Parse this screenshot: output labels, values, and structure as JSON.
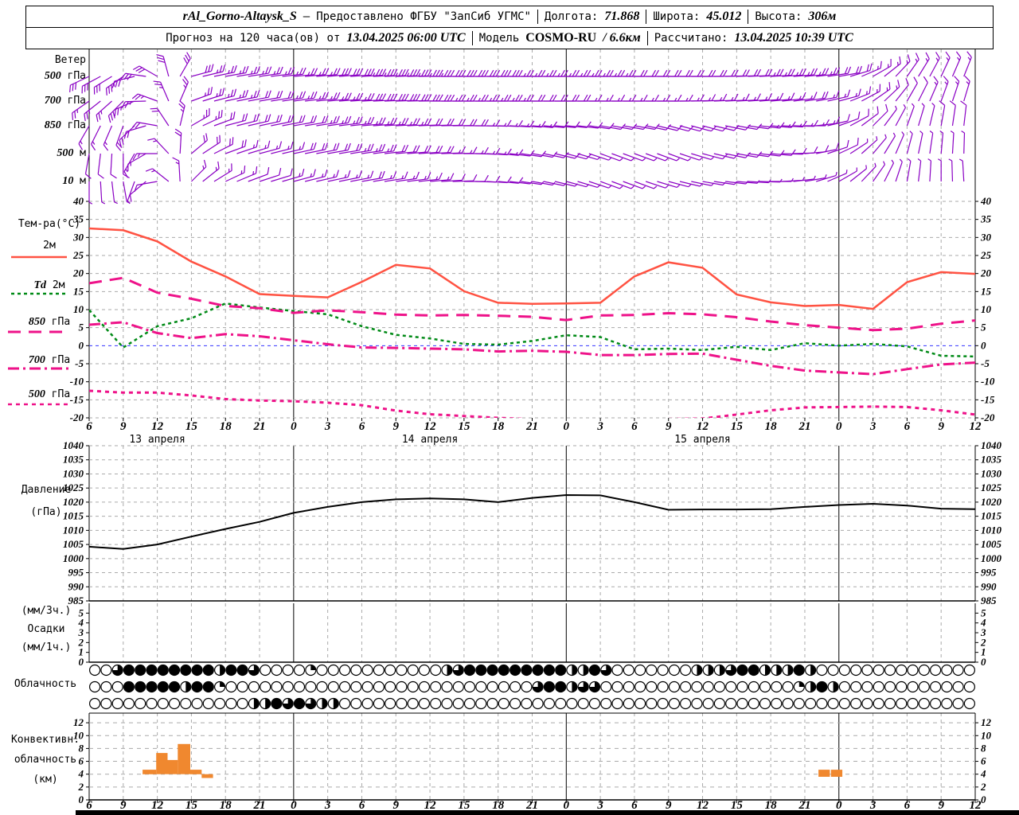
{
  "header": {
    "station": "rAl_Gorno-Altaysk_S",
    "dash": "—",
    "provided_by": "Предоставлено ФГБУ \"ЗапСиб УГМС\"",
    "lon_label": "Долгота:",
    "lon": "71.868",
    "lat_label": "Широта:",
    "lat": "45.012",
    "alt_label": "Высота:",
    "alt": "306м",
    "forecast_label": "Прогноз на 120 часа(ов) от",
    "forecast_time": "13.04.2025 06:00 UTC",
    "model_label": "Модель",
    "model": "COSMO-RU",
    "model_res": "/ 6.6км",
    "calc_label": "Рассчитано:",
    "calc_time": "13.04.2025 10:39 UTC"
  },
  "panels": {
    "wind": {
      "title": "Ветер",
      "rows": [
        {
          "num": "500",
          "unit": "гПа"
        },
        {
          "num": "700",
          "unit": "гПа"
        },
        {
          "num": "850",
          "unit": "гПа"
        },
        {
          "num": "500",
          "unit": "м"
        },
        {
          "num": "10",
          "unit": "м"
        }
      ]
    },
    "temperature": {
      "title": "Тем-ра(°C)",
      "legend": [
        {
          "em": "",
          "label": "2м"
        },
        {
          "em": "Td",
          "label": "2м"
        },
        {
          "em": "850",
          "label": "гПа"
        },
        {
          "em": "700",
          "label": "гПа"
        },
        {
          "em": "500",
          "label": "гПа"
        }
      ]
    },
    "pressure": {
      "label1": "Давление",
      "label2": "(гПа)"
    },
    "precip": {
      "label1": "(мм/3ч.)",
      "label2": "Осадки",
      "label3": "(мм/1ч.)"
    },
    "cloud": {
      "label": "Облачность"
    },
    "convective": {
      "label1": "Конвективн.",
      "label2": "облачность",
      "label3": "(км)"
    }
  },
  "colors": {
    "t2m": "#ff5242",
    "td2m": "#008a16",
    "isobaric": "#ee1289",
    "wind": "#8a00c4",
    "pressure": "#000000",
    "convective": "#f0882f",
    "grid": "#aaaaaa",
    "zero_line": "#3333ff"
  },
  "axis": {
    "x": {
      "start_hour": 6,
      "end_hour": 84,
      "step": 3,
      "day_labels": [
        {
          "text": "13 апреля",
          "hour": 12
        },
        {
          "text": "14 апреля",
          "hour": 36
        },
        {
          "text": "15 апреля",
          "hour": 60
        }
      ]
    }
  },
  "chart_data": [
    {
      "type": "wind-barbs",
      "title": "Ветер",
      "start_hour": 6,
      "step_hours": 3,
      "levels": [
        {
          "name": "500 гПа",
          "dir": [
            205,
            215,
            150,
            15,
            10,
            8,
            5,
            5,
            3,
            2,
            0,
            0,
            0,
            0,
            0,
            0,
            0,
            0,
            0,
            2,
            3,
            5,
            10,
            30,
            55,
            65,
            70
          ],
          "spd_kt": [
            30,
            35,
            30,
            30,
            28,
            25,
            25,
            30,
            35,
            35,
            35,
            30,
            30,
            28,
            25,
            25,
            22,
            20,
            20,
            22,
            25,
            25,
            22,
            18,
            15,
            18,
            20
          ]
        },
        {
          "name": "700 гПа",
          "dir": [
            215,
            225,
            160,
            20,
            12,
            10,
            8,
            5,
            3,
            2,
            0,
            0,
            0,
            0,
            0,
            0,
            0,
            0,
            2,
            3,
            5,
            8,
            15,
            35,
            60,
            70,
            75
          ],
          "spd_kt": [
            25,
            30,
            28,
            28,
            25,
            22,
            25,
            28,
            30,
            32,
            30,
            28,
            25,
            22,
            20,
            18,
            18,
            16,
            15,
            15,
            18,
            20,
            18,
            15,
            12,
            15,
            18
          ]
        },
        {
          "name": "850 гПа",
          "dir": [
            240,
            250,
            170,
            30,
            15,
            12,
            10,
            8,
            5,
            3,
            2,
            0,
            -2,
            -5,
            -5,
            -10,
            -10,
            -15,
            -15,
            -10,
            -5,
            0,
            20,
            45,
            70,
            80,
            85
          ],
          "spd_kt": [
            15,
            20,
            22,
            25,
            22,
            20,
            22,
            25,
            28,
            25,
            22,
            20,
            18,
            15,
            12,
            10,
            10,
            10,
            12,
            12,
            15,
            15,
            12,
            10,
            8,
            10,
            12
          ]
        },
        {
          "name": "500 м",
          "dir": [
            260,
            270,
            180,
            40,
            20,
            15,
            12,
            10,
            8,
            5,
            3,
            0,
            -5,
            -10,
            -15,
            -20,
            -20,
            -20,
            -15,
            -10,
            -5,
            5,
            25,
            50,
            75,
            85,
            90
          ],
          "spd_kt": [
            10,
            12,
            18,
            22,
            20,
            18,
            20,
            22,
            25,
            22,
            20,
            18,
            15,
            12,
            10,
            8,
            8,
            8,
            10,
            10,
            12,
            12,
            10,
            8,
            6,
            8,
            10
          ]
        },
        {
          "name": "10 м",
          "dir": [
            270,
            280,
            190,
            45,
            25,
            18,
            15,
            12,
            10,
            8,
            5,
            0,
            -5,
            -10,
            -15,
            -20,
            -20,
            -15,
            -10,
            -5,
            0,
            10,
            30,
            55,
            80,
            90,
            95
          ],
          "spd_kt": [
            5,
            8,
            12,
            18,
            15,
            12,
            15,
            18,
            20,
            18,
            15,
            12,
            10,
            8,
            6,
            5,
            5,
            5,
            6,
            8,
            8,
            8,
            6,
            5,
            4,
            5,
            6
          ]
        }
      ]
    },
    {
      "type": "line",
      "title": "Тем-ра(°C)",
      "ylabel": "°C",
      "ylim": [
        -20,
        40
      ],
      "ytick": 5,
      "start_hour": 6,
      "step_hours": 3,
      "series": [
        {
          "name": "2м",
          "style": "solid",
          "color": "#ff5242",
          "values": [
            32.5,
            32.0,
            28.9,
            23.3,
            19.2,
            14.3,
            13.8,
            13.4,
            17.7,
            22.4,
            21.4,
            15.1,
            11.9,
            11.6,
            11.7,
            11.9,
            19.2,
            23.1,
            21.6,
            14.2,
            12.0,
            11.0,
            11.3,
            10.2,
            17.6,
            20.4,
            19.9
          ]
        },
        {
          "name": "Td 2м",
          "style": "dashed",
          "color": "#008a16",
          "values": [
            9.9,
            -0.5,
            5.4,
            7.6,
            11.7,
            10.6,
            9.6,
            8.7,
            5.4,
            3.0,
            2.0,
            0.5,
            0.3,
            1.3,
            2.9,
            2.4,
            -1.0,
            -0.8,
            -1.2,
            -0.3,
            -1.2,
            0.7,
            0.0,
            0.5,
            -0.2,
            -2.8,
            -3.0
          ]
        },
        {
          "name": "850 гПа",
          "style": "long-dash",
          "color": "#ee1289",
          "values": [
            17.3,
            18.8,
            14.7,
            13.0,
            11.0,
            10.4,
            9.1,
            9.8,
            9.3,
            8.6,
            8.4,
            8.5,
            8.3,
            8.0,
            7.1,
            8.4,
            8.5,
            9.0,
            8.7,
            7.9,
            6.7,
            5.7,
            5.0,
            4.3,
            4.7,
            6.1,
            7.0
          ]
        },
        {
          "name": "700 гПа",
          "style": "dash-dot",
          "color": "#ee1289",
          "values": [
            5.8,
            6.5,
            3.5,
            2.1,
            3.2,
            2.6,
            1.5,
            0.4,
            -0.5,
            -0.6,
            -0.8,
            -1.0,
            -1.6,
            -1.4,
            -1.7,
            -2.6,
            -2.6,
            -2.3,
            -2.2,
            -3.9,
            -5.6,
            -6.9,
            -7.4,
            -7.9,
            -6.5,
            -5.2,
            -4.7
          ]
        },
        {
          "name": "500 гПа",
          "style": "short-dash",
          "color": "#ee1289",
          "values": [
            -12.5,
            -13.0,
            -13.0,
            -13.8,
            -14.8,
            -15.2,
            -15.4,
            -15.8,
            -16.5,
            -18.0,
            -19.0,
            -19.5,
            -20.0,
            -20.4,
            -21.0,
            -21.0,
            -20.8,
            -20.3,
            -20.2,
            -19.1,
            -17.9,
            -17.1,
            -17.0,
            -16.9,
            -17.0,
            -17.9,
            -19.1
          ]
        }
      ]
    },
    {
      "type": "line",
      "title": "Давление (гПа)",
      "ylim": [
        985,
        1040
      ],
      "ytick": 5,
      "start_hour": 6,
      "step_hours": 3,
      "series": [
        {
          "name": "Давление",
          "style": "solid",
          "color": "#000000",
          "values": [
            1004.2,
            1003.4,
            1005.0,
            1007.8,
            1010.5,
            1013.0,
            1016.2,
            1018.3,
            1020.0,
            1021.0,
            1021.3,
            1021.0,
            1020.0,
            1021.5,
            1022.5,
            1022.4,
            1020.0,
            1017.3,
            1017.4,
            1017.4,
            1017.5,
            1018.3,
            1019.0,
            1019.4,
            1018.8,
            1017.7,
            1017.5
          ]
        }
      ]
    },
    {
      "type": "bar",
      "title": "Осадки (мм/3ч., мм/1ч.)",
      "ylim": [
        0,
        6
      ],
      "ytick": 1,
      "start_hour": 6,
      "step_hours": 3,
      "values_mm_3h": [
        0,
        0,
        0,
        0,
        0,
        0,
        0,
        0,
        0,
        0,
        0,
        0,
        0,
        0,
        0,
        0,
        0,
        0,
        0,
        0,
        0,
        0,
        0,
        0,
        0,
        0,
        0
      ],
      "values_mm_1h": [
        0,
        0,
        0,
        0,
        0,
        0,
        0,
        0,
        0,
        0,
        0,
        0,
        0,
        0,
        0,
        0,
        0,
        0,
        0,
        0,
        0,
        0,
        0,
        0,
        0,
        0,
        0
      ]
    },
    {
      "type": "cloud-cover",
      "title": "Облачность",
      "start_hour": 6,
      "step_hours": 1,
      "rows_order": "top-to-bottom",
      "rows": [
        [
          0,
          0,
          6,
          8,
          8,
          8,
          8,
          8,
          8,
          8,
          8,
          4,
          8,
          8,
          6,
          0,
          0,
          0,
          0,
          2,
          0,
          0,
          0,
          0,
          0,
          0,
          0,
          0,
          0,
          0,
          0,
          4,
          6,
          8,
          8,
          8,
          8,
          8,
          8,
          8,
          8,
          8,
          4,
          4,
          8,
          6,
          0,
          0,
          0,
          0,
          0,
          0,
          0,
          4,
          4,
          4,
          6,
          8,
          8,
          4,
          4,
          4,
          8,
          4,
          0,
          0,
          0,
          0,
          0,
          0,
          0,
          0,
          0,
          0,
          0,
          0,
          0,
          0
        ],
        [
          0,
          0,
          0,
          8,
          8,
          8,
          8,
          8,
          4,
          8,
          8,
          2,
          0,
          0,
          0,
          0,
          0,
          0,
          0,
          0,
          0,
          0,
          0,
          0,
          0,
          0,
          0,
          0,
          0,
          0,
          0,
          0,
          0,
          0,
          0,
          0,
          0,
          0,
          0,
          6,
          8,
          8,
          4,
          6,
          6,
          0,
          0,
          0,
          0,
          0,
          0,
          0,
          0,
          0,
          0,
          0,
          0,
          0,
          0,
          0,
          0,
          0,
          2,
          4,
          8,
          4,
          0,
          0,
          0,
          0,
          0,
          0,
          0,
          0,
          0,
          0,
          0,
          0
        ],
        [
          0,
          0,
          0,
          0,
          0,
          0,
          0,
          0,
          0,
          0,
          0,
          0,
          0,
          0,
          4,
          4,
          8,
          6,
          8,
          6,
          4,
          4,
          0,
          0,
          0,
          0,
          0,
          0,
          0,
          0,
          0,
          0,
          0,
          0,
          0,
          0,
          0,
          0,
          0,
          0,
          0,
          0,
          0,
          0,
          0,
          0,
          0,
          0,
          0,
          0,
          0,
          0,
          0,
          0,
          0,
          0,
          0,
          0,
          0,
          0,
          0,
          0,
          0,
          0,
          0,
          0,
          0,
          0,
          0,
          0,
          0,
          0,
          0,
          0,
          0,
          0,
          0,
          0
        ]
      ]
    },
    {
      "type": "bar",
      "title": "Конвективн. облачность (км)",
      "ylim": [
        0,
        13.5
      ],
      "ytick": 2,
      "bars": [
        {
          "h0": 10.7,
          "h1": 11.9,
          "base_km": 4.0,
          "top_km": 4.7
        },
        {
          "h0": 11.9,
          "h1": 12.9,
          "base_km": 4.0,
          "top_km": 7.3
        },
        {
          "h0": 12.9,
          "h1": 13.8,
          "base_km": 4.0,
          "top_km": 6.2
        },
        {
          "h0": 13.8,
          "h1": 14.9,
          "base_km": 4.0,
          "top_km": 8.7
        },
        {
          "h0": 14.9,
          "h1": 15.9,
          "base_km": 4.0,
          "top_km": 4.7
        },
        {
          "h0": 15.9,
          "h1": 16.9,
          "base_km": 3.4,
          "top_km": 4.0
        },
        {
          "h0": 70.2,
          "h1": 71.2,
          "base_km": 3.6,
          "top_km": 4.7
        },
        {
          "h0": 71.3,
          "h1": 72.3,
          "base_km": 3.6,
          "top_km": 4.7
        }
      ]
    }
  ]
}
